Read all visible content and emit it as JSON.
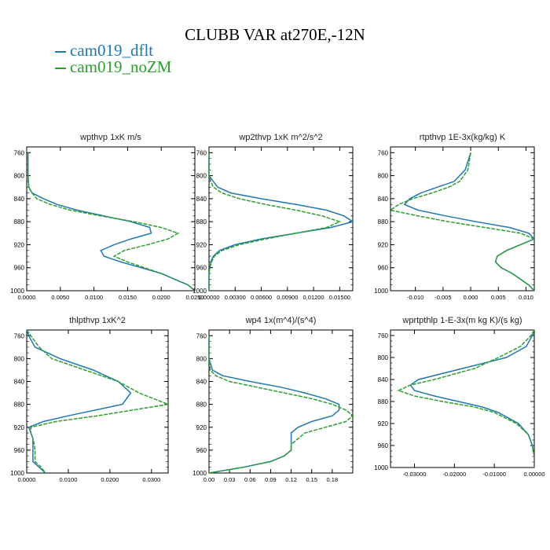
{
  "title": "CLUBB VAR at270E,-12N",
  "legend": [
    {
      "name": "cam019_dflt",
      "color": "#1f77b4"
    },
    {
      "name": "cam019_noZM",
      "color": "#2ca02c"
    }
  ],
  "chart_data": [
    {
      "type": "line",
      "title": "wpthvp  1xK m/s",
      "xlim": [
        0,
        0.025
      ],
      "xticks": [
        "0.0000",
        "0.0050",
        "0.0100",
        "0.0150",
        "0.0200",
        "0.0250"
      ],
      "ylim": [
        1000,
        750
      ],
      "yticks": [
        "760",
        "800",
        "840",
        "880",
        "920",
        "960",
        "1000"
      ],
      "y": [
        760,
        800,
        820,
        830,
        840,
        850,
        860,
        870,
        880,
        890,
        900,
        910,
        920,
        930,
        940,
        950,
        960,
        970,
        980,
        990,
        1000
      ],
      "series": [
        {
          "name": "cam019_dflt",
          "values": [
            0.0002,
            0.0002,
            0.0003,
            0.0008,
            0.0025,
            0.0045,
            0.0075,
            0.0115,
            0.0155,
            0.0183,
            0.0185,
            0.0155,
            0.013,
            0.011,
            0.0115,
            0.014,
            0.017,
            0.02,
            0.022,
            0.024,
            0.025
          ]
        },
        {
          "name": "cam019_noZM",
          "values": [
            0.0002,
            0.0002,
            0.0003,
            0.0008,
            0.0015,
            0.0035,
            0.0065,
            0.011,
            0.016,
            0.02,
            0.0225,
            0.021,
            0.018,
            0.0145,
            0.013,
            0.015,
            0.0175,
            0.02,
            0.022,
            0.024,
            0.025
          ]
        }
      ]
    },
    {
      "type": "line",
      "title": "wp2thvp  1xK m^2/s^2",
      "xlim": [
        0,
        0.0165
      ],
      "xticks": [
        "0.00000",
        "0.00300",
        "0.00600",
        "0.00900",
        "0.01200",
        "0.01500"
      ],
      "ylim": [
        1000,
        750
      ],
      "yticks": [
        "760",
        "800",
        "840",
        "880",
        "920",
        "960",
        "1000"
      ],
      "y": [
        760,
        800,
        810,
        820,
        830,
        840,
        850,
        860,
        870,
        880,
        890,
        900,
        910,
        920,
        930,
        940,
        950,
        960,
        970,
        1000
      ],
      "series": [
        {
          "name": "cam019_dflt",
          "values": [
            0.0,
            0.0,
            0.0005,
            0.001,
            0.0025,
            0.006,
            0.01,
            0.0135,
            0.0155,
            0.0165,
            0.014,
            0.01,
            0.006,
            0.003,
            0.0012,
            0.0005,
            0.0002,
            0.0001,
            0.0,
            0.0
          ]
        },
        {
          "name": "cam019_noZM",
          "values": [
            0.0,
            0.0,
            0.0002,
            0.0005,
            0.0015,
            0.0035,
            0.0065,
            0.01,
            0.013,
            0.015,
            0.0135,
            0.01,
            0.0065,
            0.0035,
            0.0015,
            0.0006,
            0.0003,
            0.0001,
            0.0,
            0.0
          ]
        }
      ]
    },
    {
      "type": "line",
      "title": "rtpthvp  1E-3x(kg/kg) K",
      "xlim": [
        -0.0145,
        0.0115
      ],
      "xticks": [
        "-0.010",
        "-0.005",
        "0.000",
        "0.005",
        "0.010"
      ],
      "xtick_values": [
        -0.01,
        -0.005,
        0.0,
        0.005,
        0.01
      ],
      "ylim": [
        1000,
        750
      ],
      "yticks": [
        "760",
        "800",
        "840",
        "880",
        "920",
        "960",
        "1000"
      ],
      "y": [
        760,
        790,
        810,
        820,
        830,
        840,
        850,
        860,
        870,
        880,
        890,
        900,
        910,
        920,
        930,
        940,
        950,
        960,
        970,
        980,
        990,
        1000
      ],
      "series": [
        {
          "name": "cam019_dflt",
          "values": [
            0.0,
            -0.001,
            -0.003,
            -0.006,
            -0.009,
            -0.011,
            -0.012,
            -0.0095,
            -0.0045,
            0.001,
            0.007,
            0.0105,
            0.0115,
            0.009,
            0.0065,
            0.0048,
            0.0045,
            0.0055,
            0.0075,
            0.009,
            0.0105,
            0.0115
          ]
        },
        {
          "name": "cam019_noZM",
          "values": [
            0.0,
            -0.0005,
            -0.002,
            -0.004,
            -0.007,
            -0.0105,
            -0.013,
            -0.0145,
            -0.0095,
            -0.004,
            0.0025,
            0.009,
            0.0115,
            0.009,
            0.0065,
            0.0048,
            0.0045,
            0.0055,
            0.0075,
            0.009,
            0.0105,
            0.0115
          ]
        }
      ]
    },
    {
      "type": "line",
      "title": "thlpthvp  1xK^2",
      "xlim": [
        0,
        0.034
      ],
      "xticks": [
        "0.0000",
        "0.0100",
        "0.0200",
        "0.0300"
      ],
      "ylim": [
        1000,
        750
      ],
      "yticks": [
        "760",
        "800",
        "840",
        "880",
        "920",
        "960",
        "1000"
      ],
      "y": [
        750,
        760,
        780,
        800,
        820,
        840,
        860,
        880,
        900,
        910,
        920,
        930,
        940,
        950,
        960,
        970,
        980,
        990,
        1000
      ],
      "series": [
        {
          "name": "cam019_dflt",
          "values": [
            0.0,
            0.0005,
            0.002,
            0.008,
            0.016,
            0.022,
            0.025,
            0.023,
            0.01,
            0.004,
            0.0005,
            0.001,
            0.0015,
            0.0015,
            0.0015,
            0.0015,
            0.0015,
            0.003,
            0.0045
          ]
        },
        {
          "name": "cam019_noZM",
          "values": [
            0.0,
            0.001,
            0.003,
            0.006,
            0.014,
            0.022,
            0.027,
            0.034,
            0.017,
            0.007,
            0.001,
            0.001,
            0.0015,
            0.0018,
            0.002,
            0.002,
            0.002,
            0.0035,
            0.0045
          ]
        }
      ]
    },
    {
      "type": "line",
      "title": "wp4  1x(m^4)/(s^4)",
      "xlim": [
        0,
        0.21
      ],
      "xticks": [
        "0.00",
        "0.03",
        "0.06",
        "0.09",
        "0.12",
        "0.15",
        "0.18"
      ],
      "ylim": [
        1000,
        750
      ],
      "yticks": [
        "760",
        "800",
        "840",
        "880",
        "920",
        "960",
        "1000"
      ],
      "y": [
        760,
        800,
        820,
        830,
        840,
        850,
        860,
        870,
        880,
        890,
        900,
        910,
        920,
        930,
        940,
        950,
        960,
        970,
        980,
        990,
        1000
      ],
      "series": [
        {
          "name": "cam019_dflt",
          "values": [
            0.0,
            0.0,
            0.005,
            0.02,
            0.06,
            0.105,
            0.14,
            0.17,
            0.19,
            0.19,
            0.18,
            0.15,
            0.13,
            0.12,
            0.12,
            0.12,
            0.12,
            0.11,
            0.09,
            0.05,
            0.0
          ]
        },
        {
          "name": "cam019_noZM",
          "values": [
            0.0,
            0.0,
            0.002,
            0.01,
            0.03,
            0.07,
            0.11,
            0.15,
            0.18,
            0.2,
            0.21,
            0.2,
            0.17,
            0.14,
            0.13,
            0.12,
            0.12,
            0.11,
            0.09,
            0.05,
            0.0
          ]
        }
      ]
    },
    {
      "type": "line",
      "title": "wprtpthlp  1-E-3x(m kg K)/(s kg)",
      "xlim": [
        -0.036,
        0.0
      ],
      "xticks": [
        "-0.03000",
        "-0.02000",
        "-0.01000",
        "0.00000"
      ],
      "xtick_values": [
        -0.03,
        -0.02,
        -0.01,
        0.0
      ],
      "ylim": [
        1000,
        750
      ],
      "yticks": [
        "760",
        "800",
        "840",
        "880",
        "920",
        "960",
        "1000"
      ],
      "y": [
        750,
        760,
        780,
        800,
        820,
        840,
        850,
        860,
        870,
        880,
        890,
        900,
        920,
        940,
        960,
        980,
        1000
      ],
      "series": [
        {
          "name": "cam019_dflt",
          "values": [
            0.0,
            -0.0005,
            -0.002,
            -0.007,
            -0.018,
            -0.029,
            -0.031,
            -0.03,
            -0.025,
            -0.019,
            -0.013,
            -0.009,
            -0.004,
            -0.0015,
            -0.0005,
            0.0,
            0.0
          ]
        },
        {
          "name": "cam019_noZM",
          "values": [
            0.0,
            -0.0008,
            -0.0035,
            -0.009,
            -0.015,
            -0.025,
            -0.031,
            -0.034,
            -0.03,
            -0.023,
            -0.015,
            -0.01,
            -0.0045,
            -0.0015,
            -0.0005,
            0.0,
            0.0
          ]
        }
      ]
    }
  ]
}
